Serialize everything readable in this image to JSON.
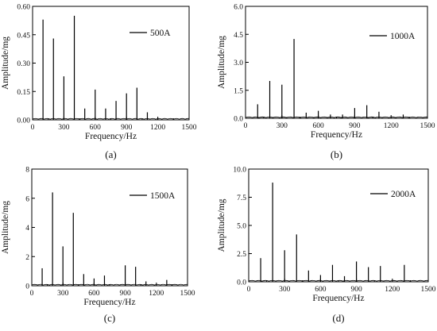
{
  "chart_data": [
    {
      "type": "line",
      "panel_label": "(a)",
      "xlabel": "Frequency/Hz",
      "ylabel": "Amplitude/mg",
      "xlim": [
        0,
        1500
      ],
      "ylim": [
        0,
        0.6
      ],
      "xticks": [
        0,
        300,
        600,
        900,
        1200,
        1500
      ],
      "yticks": [
        0.0,
        0.15,
        0.3,
        0.45,
        0.6
      ],
      "ytick_labels": [
        "0.00",
        "0.15",
        "0.30",
        "0.45",
        "0.60"
      ],
      "xtick_labels": [
        "0",
        "300",
        "600",
        "900",
        "1200",
        "1500"
      ],
      "legend": "500A",
      "legend_position": "top-right",
      "peaks": [
        {
          "x": 100,
          "y": 0.53
        },
        {
          "x": 200,
          "y": 0.43
        },
        {
          "x": 300,
          "y": 0.23
        },
        {
          "x": 400,
          "y": 0.55
        },
        {
          "x": 500,
          "y": 0.06
        },
        {
          "x": 600,
          "y": 0.16
        },
        {
          "x": 700,
          "y": 0.06
        },
        {
          "x": 800,
          "y": 0.1
        },
        {
          "x": 900,
          "y": 0.14
        },
        {
          "x": 1000,
          "y": 0.17
        },
        {
          "x": 1100,
          "y": 0.04
        },
        {
          "x": 1200,
          "y": 0.01
        }
      ]
    },
    {
      "type": "line",
      "panel_label": "(b)",
      "xlabel": "Frequency/Hz",
      "ylabel": "Amplitude/mg",
      "xlim": [
        0,
        1500
      ],
      "ylim": [
        0,
        6.0
      ],
      "xticks": [
        0,
        300,
        600,
        900,
        1200,
        1500
      ],
      "yticks": [
        0,
        1.5,
        3.0,
        4.5,
        6.0
      ],
      "ytick_labels": [
        "0.0",
        "1.5",
        "3.0",
        "4.5",
        "6.0"
      ],
      "xtick_labels": [
        "0",
        "300",
        "600",
        "900",
        "1200",
        "1500"
      ],
      "legend": "1000A",
      "legend_position": "top-right",
      "peaks": [
        {
          "x": 100,
          "y": 0.75
        },
        {
          "x": 200,
          "y": 2.0
        },
        {
          "x": 300,
          "y": 1.8
        },
        {
          "x": 400,
          "y": 4.25
        },
        {
          "x": 500,
          "y": 0.3
        },
        {
          "x": 600,
          "y": 0.4
        },
        {
          "x": 700,
          "y": 0.2
        },
        {
          "x": 800,
          "y": 0.2
        },
        {
          "x": 900,
          "y": 0.55
        },
        {
          "x": 1000,
          "y": 0.7
        },
        {
          "x": 1100,
          "y": 0.35
        },
        {
          "x": 1300,
          "y": 0.2
        }
      ]
    },
    {
      "type": "line",
      "panel_label": "(c)",
      "xlabel": "Frequency/Hz",
      "ylabel": "Amplitude/mg",
      "xlim": [
        0,
        1500
      ],
      "ylim": [
        0,
        8
      ],
      "xticks": [
        0,
        300,
        600,
        900,
        1200,
        1500
      ],
      "yticks": [
        0,
        2,
        4,
        6,
        8
      ],
      "ytick_labels": [
        "0",
        "2",
        "4",
        "6",
        "8"
      ],
      "xtick_labels": [
        "0",
        "300",
        "600",
        "900",
        "1200",
        "1500"
      ],
      "legend": "1500A",
      "legend_position": "top-right",
      "peaks": [
        {
          "x": 100,
          "y": 1.2
        },
        {
          "x": 200,
          "y": 6.4
        },
        {
          "x": 300,
          "y": 2.7
        },
        {
          "x": 400,
          "y": 5.0
        },
        {
          "x": 500,
          "y": 0.8
        },
        {
          "x": 600,
          "y": 0.5
        },
        {
          "x": 700,
          "y": 0.7
        },
        {
          "x": 900,
          "y": 1.4
        },
        {
          "x": 1000,
          "y": 1.3
        },
        {
          "x": 1100,
          "y": 0.3
        },
        {
          "x": 1300,
          "y": 0.4
        }
      ]
    },
    {
      "type": "line",
      "panel_label": "(d)",
      "xlabel": "Frequency/Hz",
      "ylabel": "Amplitude/mg",
      "xlim": [
        0,
        1500
      ],
      "ylim": [
        0,
        10.0
      ],
      "xticks": [
        0,
        300,
        600,
        900,
        1200,
        1500
      ],
      "yticks": [
        0,
        2.5,
        5.0,
        7.5,
        10.0
      ],
      "ytick_labels": [
        "0.0",
        "2.5",
        "5.0",
        "7.5",
        "10.0"
      ],
      "xtick_labels": [
        "0",
        "300",
        "600",
        "900",
        "1200",
        "1500"
      ],
      "legend": "2000A",
      "legend_position": "top-right",
      "peaks": [
        {
          "x": 100,
          "y": 2.1
        },
        {
          "x": 200,
          "y": 8.8
        },
        {
          "x": 300,
          "y": 2.8
        },
        {
          "x": 400,
          "y": 4.2
        },
        {
          "x": 500,
          "y": 1.0
        },
        {
          "x": 600,
          "y": 0.6
        },
        {
          "x": 700,
          "y": 1.5
        },
        {
          "x": 800,
          "y": 0.5
        },
        {
          "x": 900,
          "y": 1.8
        },
        {
          "x": 1000,
          "y": 1.3
        },
        {
          "x": 1100,
          "y": 1.4
        },
        {
          "x": 1300,
          "y": 1.5
        }
      ]
    }
  ]
}
